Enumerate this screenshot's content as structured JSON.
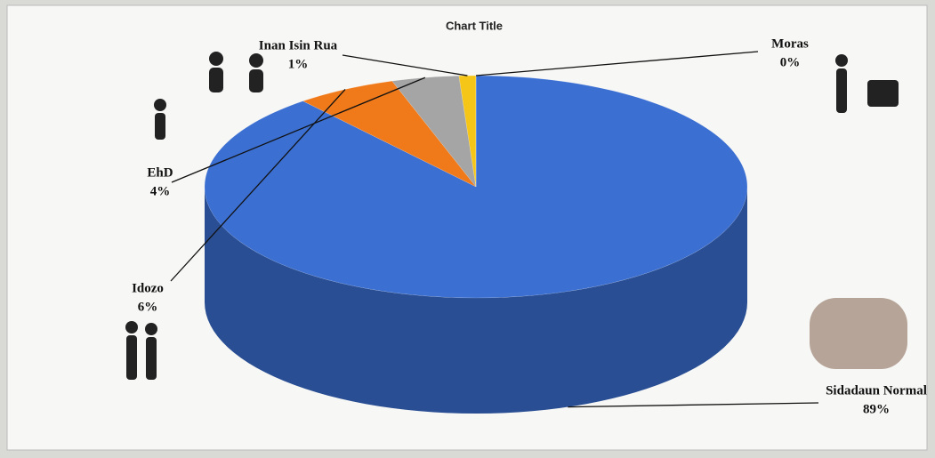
{
  "chart_data": {
    "type": "pie",
    "title": "Chart Title",
    "categories": [
      "Sidadaun Normal",
      "Idozo",
      "EhD",
      "Inan Isin Rua",
      "Moras"
    ],
    "values": [
      89,
      6,
      4,
      1,
      0
    ],
    "value_labels": [
      "89%",
      "6%",
      "4%",
      "1%",
      "0%"
    ],
    "colors": [
      "#3b6fd2",
      "#f07a1a",
      "#a5a5a5",
      "#f5c518",
      "#4a86c8"
    ]
  }
}
